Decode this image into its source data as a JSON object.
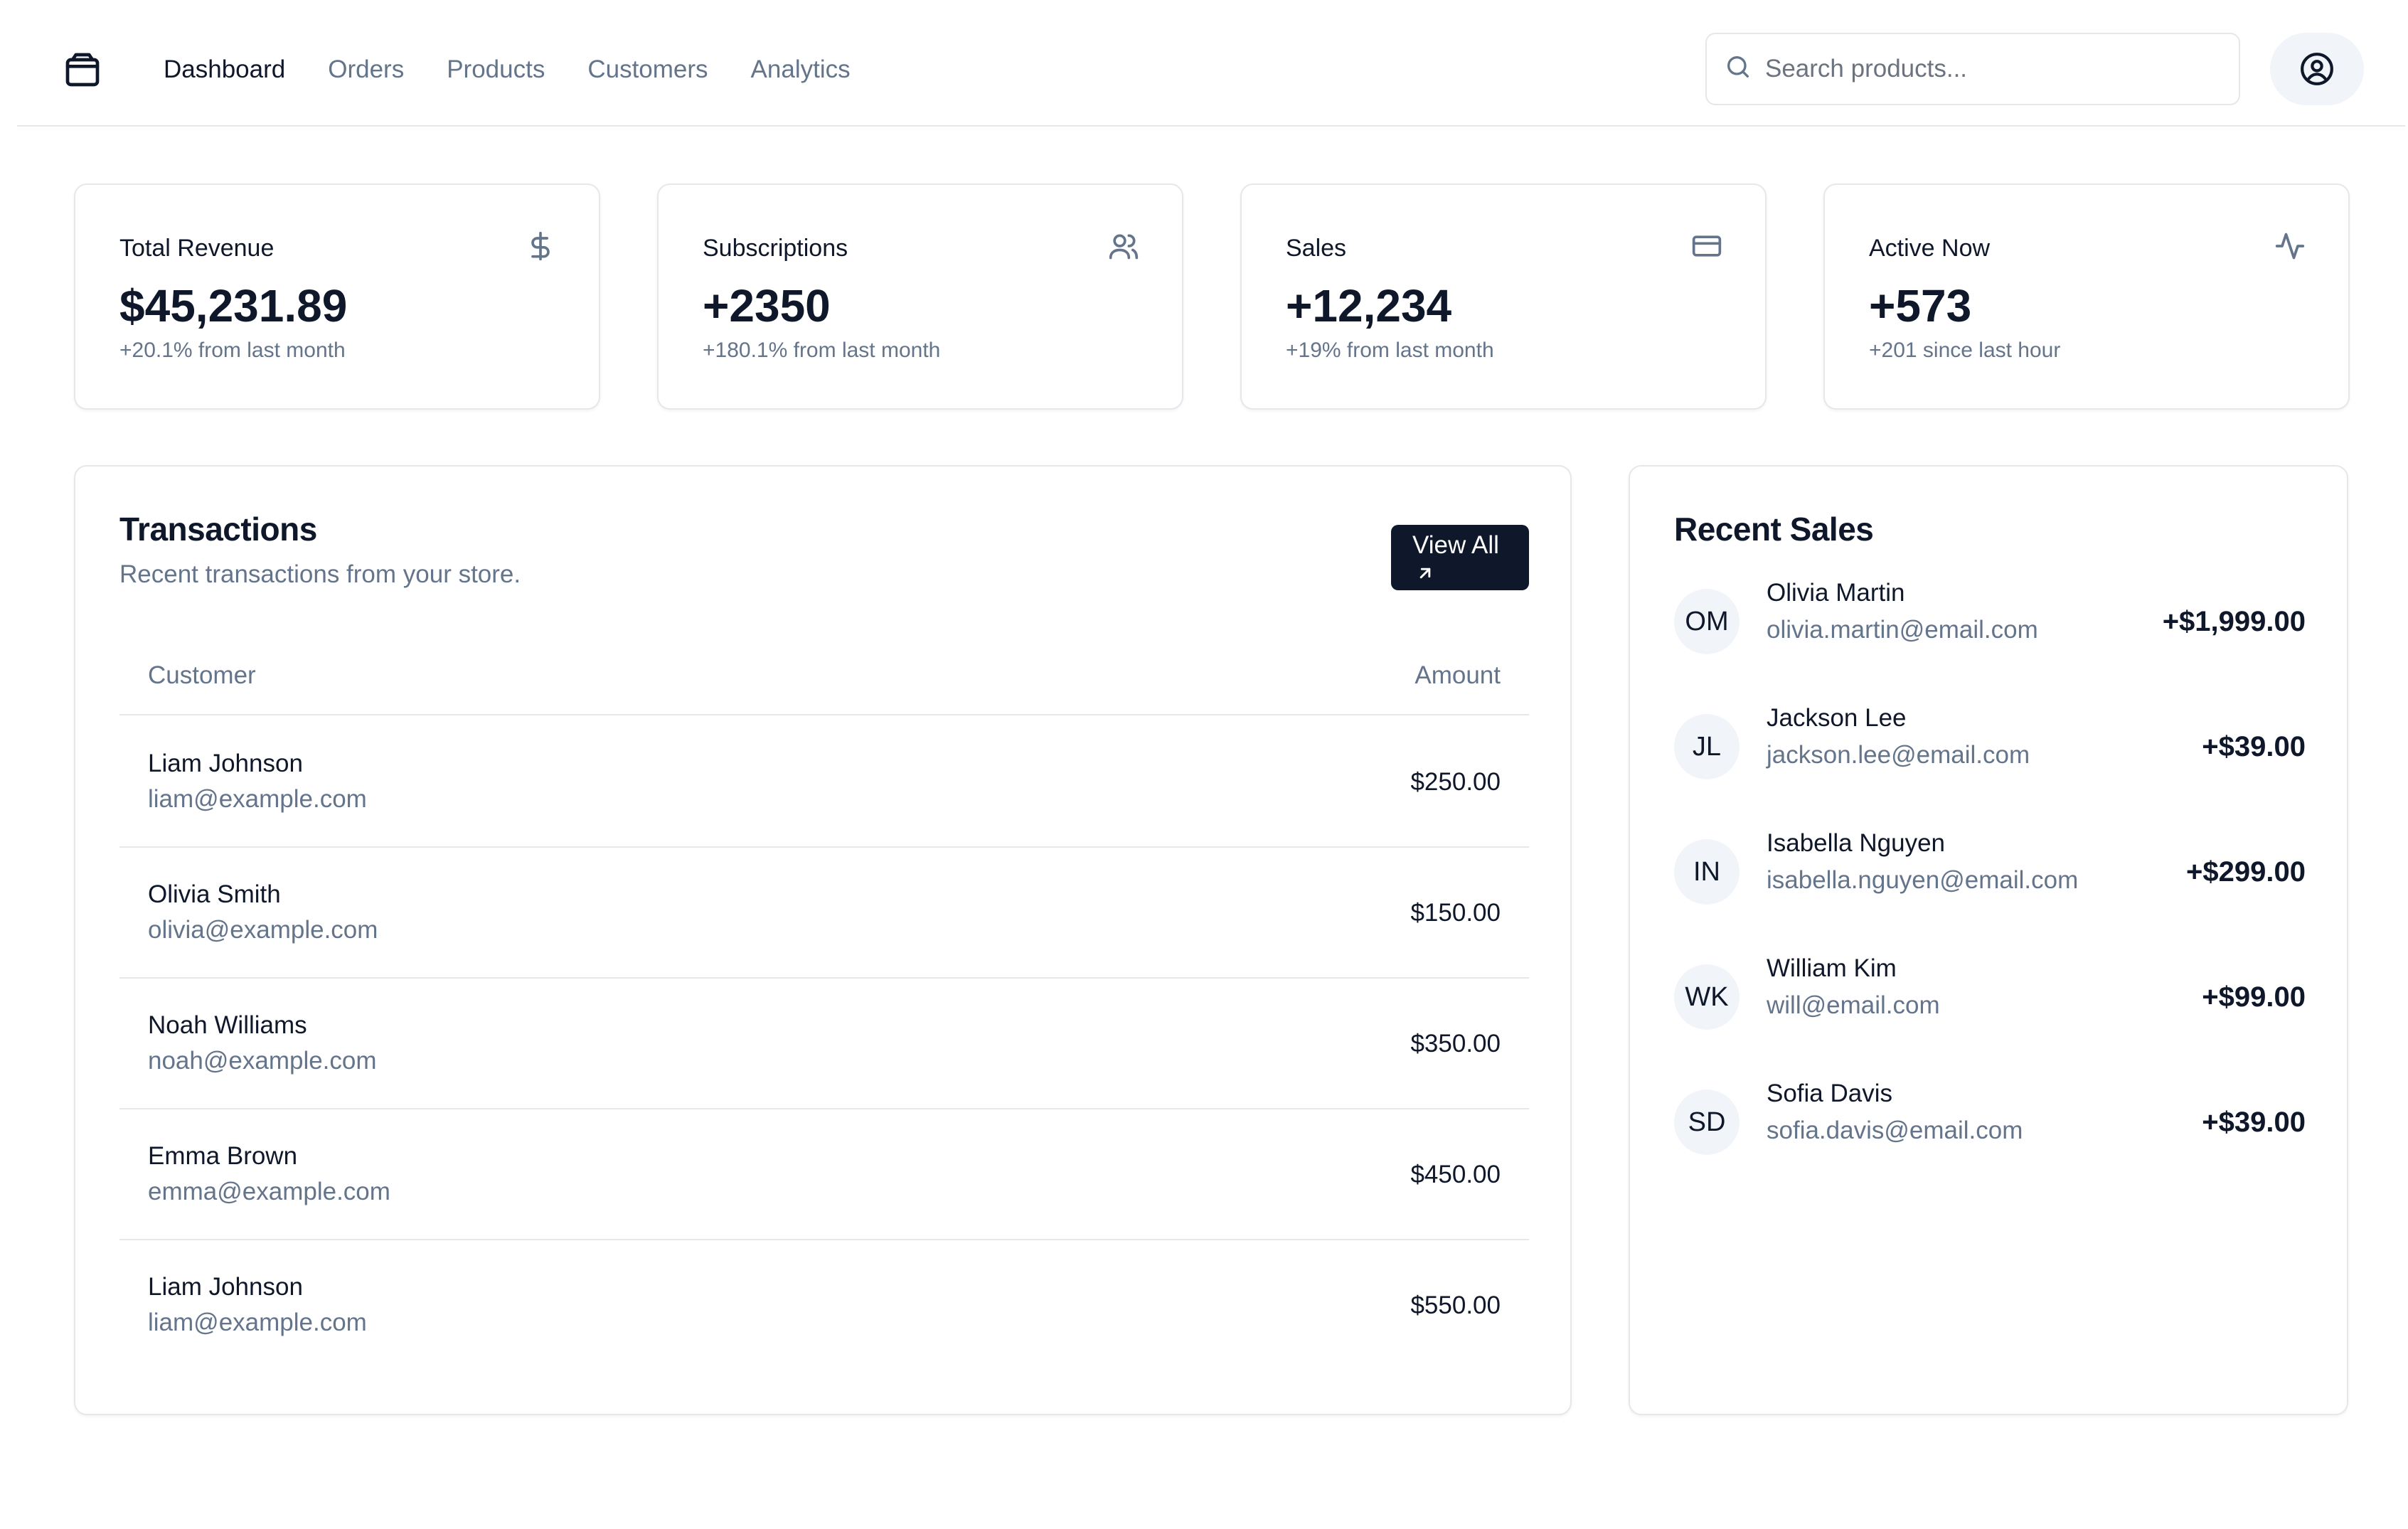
{
  "nav": {
    "items": [
      {
        "label": "Dashboard",
        "active": true
      },
      {
        "label": "Orders"
      },
      {
        "label": "Products"
      },
      {
        "label": "Customers"
      },
      {
        "label": "Analytics"
      }
    ]
  },
  "search": {
    "placeholder": "Search products..."
  },
  "icons": {
    "logo": "package-icon",
    "search": "search-icon",
    "user": "user-circle-icon",
    "revenue": "dollar-icon",
    "subscriptions": "users-icon",
    "sales": "credit-card-icon",
    "active": "activity-icon",
    "view_all": "arrow-up-right-icon"
  },
  "colors": {
    "text": "#0f172a",
    "muted": "#64748b",
    "border": "#e5e7eb",
    "button": "#0f172a",
    "avatar_bg": "#f1f5f9"
  },
  "stats": [
    {
      "title": "Total Revenue",
      "value": "$45,231.89",
      "sub": "+20.1% from last month"
    },
    {
      "title": "Subscriptions",
      "value": "+2350",
      "sub": "+180.1% from last month"
    },
    {
      "title": "Sales",
      "value": "+12,234",
      "sub": "+19% from last month"
    },
    {
      "title": "Active Now",
      "value": "+573",
      "sub": "+201 since last hour"
    }
  ],
  "transactions": {
    "title": "Transactions",
    "description": "Recent transactions from your store.",
    "view_all": "View All",
    "columns": {
      "customer": "Customer",
      "amount": "Amount"
    },
    "rows": [
      {
        "name": "Liam Johnson",
        "email": "liam@example.com",
        "amount": "$250.00"
      },
      {
        "name": "Olivia Smith",
        "email": "olivia@example.com",
        "amount": "$150.00"
      },
      {
        "name": "Noah Williams",
        "email": "noah@example.com",
        "amount": "$350.00"
      },
      {
        "name": "Emma Brown",
        "email": "emma@example.com",
        "amount": "$450.00"
      },
      {
        "name": "Liam Johnson",
        "email": "liam@example.com",
        "amount": "$550.00"
      }
    ]
  },
  "recent_sales": {
    "title": "Recent Sales",
    "items": [
      {
        "initials": "OM",
        "name": "Olivia Martin",
        "email": "olivia.martin@email.com",
        "amount": "+$1,999.00"
      },
      {
        "initials": "JL",
        "name": "Jackson Lee",
        "email": "jackson.lee@email.com",
        "amount": "+$39.00"
      },
      {
        "initials": "IN",
        "name": "Isabella Nguyen",
        "email": "isabella.nguyen@email.com",
        "amount": "+$299.00"
      },
      {
        "initials": "WK",
        "name": "William Kim",
        "email": "will@email.com",
        "amount": "+$99.00"
      },
      {
        "initials": "SD",
        "name": "Sofia Davis",
        "email": "sofia.davis@email.com",
        "amount": "+$39.00"
      }
    ]
  }
}
